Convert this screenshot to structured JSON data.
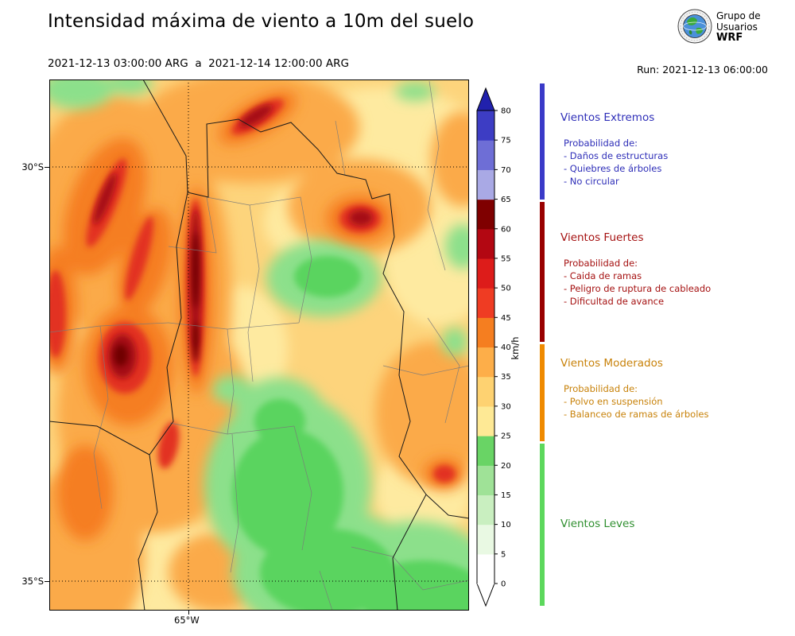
{
  "header": {
    "title": "Intensidad máxima de viento a 10m del suelo",
    "date_range": "2021-12-13 03:00:00 ARG  a  2021-12-14 12:00:00 ARG",
    "run_label": "Run: 2021-12-13 06:00:00",
    "logo": {
      "icon": "globe-wrf-logo",
      "org_line1": "Grupo de",
      "org_line2": "Usuarios",
      "org_line3": "WRF"
    }
  },
  "map": {
    "y_axis_ticks": [
      "30°S",
      "35°S"
    ],
    "x_axis_ticks": [
      "65°W"
    ]
  },
  "colorbar": {
    "unit": "km/h",
    "tick_step": 5,
    "ticks": [
      0,
      5,
      10,
      15,
      20,
      25,
      30,
      35,
      40,
      45,
      50,
      55,
      60,
      65,
      70,
      75,
      80
    ],
    "segments": [
      {
        "from": 0,
        "to": 5,
        "color": "#ffffff"
      },
      {
        "from": 5,
        "to": 10,
        "color": "#e9f9e3"
      },
      {
        "from": 10,
        "to": 15,
        "color": "#c9efc0"
      },
      {
        "from": 15,
        "to": 20,
        "color": "#9fe297"
      },
      {
        "from": 20,
        "to": 25,
        "color": "#69d465"
      },
      {
        "from": 25,
        "to": 30,
        "color": "#fee995"
      },
      {
        "from": 30,
        "to": 35,
        "color": "#fed271"
      },
      {
        "from": 35,
        "to": 40,
        "color": "#fdae49"
      },
      {
        "from": 40,
        "to": 45,
        "color": "#f57e20"
      },
      {
        "from": 45,
        "to": 50,
        "color": "#ef3c23"
      },
      {
        "from": 50,
        "to": 55,
        "color": "#dd1c1a"
      },
      {
        "from": 55,
        "to": 60,
        "color": "#b30712"
      },
      {
        "from": 60,
        "to": 65,
        "color": "#7f0000"
      },
      {
        "from": 65,
        "to": 70,
        "color": "#a9a9e5"
      },
      {
        "from": 70,
        "to": 75,
        "color": "#6e6ed6"
      },
      {
        "from": 75,
        "to": 80,
        "color": "#3d3dc4"
      }
    ],
    "over_color": "#2121ad",
    "under_color": "#ffffff"
  },
  "legend": {
    "sections": [
      {
        "title": "Vientos Extremos",
        "text_color": "#2e2eb8",
        "strip_color": "#3a3ac8",
        "subtitle": "Probabilidad de:",
        "lines": [
          "- Daños de estructuras",
          "- Quiebres de árboles",
          "- No circular"
        ]
      },
      {
        "title": "Vientos Fuertes",
        "text_color": "#a51111",
        "strip_color": "#990000",
        "subtitle": "Probabilidad de:",
        "lines": [
          "- Caida de ramas",
          "- Peligro de ruptura de cableado",
          "- Dificultad de avance"
        ]
      },
      {
        "title": "Vientos Moderados",
        "text_color": "#c8820a",
        "strip_color": "#ef8a00",
        "subtitle": "Probabilidad de:",
        "lines": [
          "- Polvo en suspensión",
          "- Balanceo de ramas de árboles"
        ]
      },
      {
        "title": "Vientos Leves",
        "text_color": "#2f8f2f",
        "strip_color": "#5cd85c",
        "subtitle": "",
        "lines": []
      }
    ]
  },
  "chart_data": {
    "type": "heatmap",
    "title": "Intensidad máxima de viento a 10m del suelo",
    "time_range": "2021-12-13 03:00:00 ARG a 2021-12-14 12:00:00 ARG",
    "model_run": "Run: 2021-12-13 06:00:00",
    "variable": "maximum 10 m wind speed",
    "units": "km/h",
    "colorbar_range": [
      0,
      80
    ],
    "colorbar_ticks": [
      0,
      5,
      10,
      15,
      20,
      25,
      30,
      35,
      40,
      45,
      50,
      55,
      60,
      65,
      70,
      75,
      80
    ],
    "colorbar_extend": "both",
    "x_axis_ticks": [
      "65°W"
    ],
    "y_axis_ticks": [
      "30°S",
      "35°S"
    ],
    "categories": [
      {
        "label": "Vientos Extremos",
        "range_kmh": "65 - 80+"
      },
      {
        "label": "Vientos Fuertes",
        "range_kmh": "40 - 65"
      },
      {
        "label": "Vientos Moderados",
        "range_kmh": "25 - 40"
      },
      {
        "label": "Vientos Leves",
        "range_kmh": "0 - 25"
      }
    ]
  }
}
